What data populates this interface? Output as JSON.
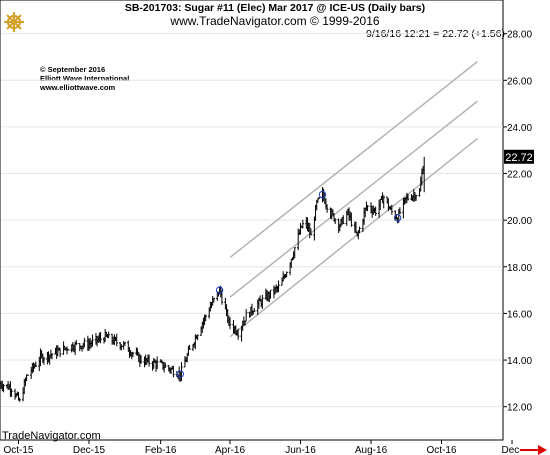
{
  "header": {
    "title": "SB-201703:  Sugar #11 (Elec) Mar 2017 @ ICE-US  (Daily bars)",
    "subtitle": "www.TradeNavigator.com © 1999-2016",
    "last_quote": "9/16/16 12:21 = 22.72 (+1.56)"
  },
  "copyright_lines": [
    "© September 2016",
    "Elliott Wave International",
    "www.elliottwave.com"
  ],
  "brand_label": "TradeNavigator.com",
  "last_price_tag": "22.72",
  "colors": {
    "bars": "#000000",
    "channel_lines": "#b4b4b4",
    "grid": "#e6e6e6",
    "marker": "#1f3fbf",
    "price_tag_bg": "#000000",
    "price_tag_text": "#ffffff",
    "axis_arrow": "#e00000",
    "logo": "#d4a22a"
  },
  "icons": [
    "ship-helm-logo-icon",
    "axis-arrow-icon"
  ],
  "chart_data": {
    "type": "ohlc-bar",
    "xlabel": "",
    "ylabel": "",
    "ylim": [
      11,
      28.5
    ],
    "y_ticks": [
      "12.00",
      "14.00",
      "16.00",
      "18.00",
      "20.00",
      "22.00",
      "24.00",
      "26.00",
      "28.00"
    ],
    "x_ticks": [
      "Oct-15",
      "Dec-15",
      "Feb-16",
      "Apr-16",
      "Jun-16",
      "Aug-16",
      "Oct-16",
      "Dec-"
    ],
    "x_tick_dates": [
      "2015-10-01",
      "2015-12-01",
      "2016-02-01",
      "2016-04-01",
      "2016-06-01",
      "2016-08-01",
      "2016-10-01",
      "2016-12-01"
    ],
    "x_range": [
      "2015-09-15",
      "2016-12-20"
    ],
    "grid": true,
    "price_series": [
      {
        "date": "2015-09-15",
        "close": 13.0
      },
      {
        "date": "2015-09-25",
        "close": 12.8
      },
      {
        "date": "2015-10-02",
        "close": 12.2
      },
      {
        "date": "2015-10-08",
        "close": 13.3
      },
      {
        "date": "2015-10-20",
        "close": 14.1
      },
      {
        "date": "2015-11-01",
        "close": 14.3
      },
      {
        "date": "2015-11-15",
        "close": 14.6
      },
      {
        "date": "2015-12-01",
        "close": 14.7
      },
      {
        "date": "2015-12-15",
        "close": 15.0
      },
      {
        "date": "2016-01-01",
        "close": 14.6
      },
      {
        "date": "2016-01-15",
        "close": 14.0
      },
      {
        "date": "2016-02-01",
        "close": 13.8
      },
      {
        "date": "2016-02-10",
        "close": 13.6
      },
      {
        "date": "2016-02-18",
        "close": 13.4
      },
      {
        "date": "2016-02-25",
        "close": 14.3
      },
      {
        "date": "2016-03-05",
        "close": 15.3
      },
      {
        "date": "2016-03-15",
        "close": 16.3
      },
      {
        "date": "2016-03-23",
        "close": 17.0
      },
      {
        "date": "2016-03-31",
        "close": 15.6
      },
      {
        "date": "2016-04-08",
        "close": 15.2
      },
      {
        "date": "2016-04-15",
        "close": 15.9
      },
      {
        "date": "2016-04-25",
        "close": 16.4
      },
      {
        "date": "2016-05-05",
        "close": 16.8
      },
      {
        "date": "2016-05-15",
        "close": 17.2
      },
      {
        "date": "2016-05-25",
        "close": 18.5
      },
      {
        "date": "2016-06-01",
        "close": 19.6
      },
      {
        "date": "2016-06-05",
        "close": 20.0
      },
      {
        "date": "2016-06-10",
        "close": 19.3
      },
      {
        "date": "2016-06-15",
        "close": 20.7
      },
      {
        "date": "2016-06-20",
        "close": 21.1
      },
      {
        "date": "2016-06-27",
        "close": 20.3
      },
      {
        "date": "2016-07-05",
        "close": 19.8
      },
      {
        "date": "2016-07-12",
        "close": 20.3
      },
      {
        "date": "2016-07-20",
        "close": 19.3
      },
      {
        "date": "2016-07-28",
        "close": 20.6
      },
      {
        "date": "2016-08-05",
        "close": 20.4
      },
      {
        "date": "2016-08-12",
        "close": 21.0
      },
      {
        "date": "2016-08-18",
        "close": 20.4
      },
      {
        "date": "2016-08-24",
        "close": 20.1
      },
      {
        "date": "2016-08-31",
        "close": 20.9
      },
      {
        "date": "2016-09-07",
        "close": 21.1
      },
      {
        "date": "2016-09-12",
        "close": 21.2
      },
      {
        "date": "2016-09-16",
        "close": 22.72
      }
    ],
    "channel_lines": [
      {
        "start": [
          "2016-04-01",
          18.4
        ],
        "end": [
          "2016-11-01",
          26.8
        ]
      },
      {
        "start": [
          "2016-04-01",
          16.7
        ],
        "end": [
          "2016-11-01",
          25.1
        ]
      },
      {
        "start": [
          "2016-04-01",
          15.0
        ],
        "end": [
          "2016-11-01",
          23.5
        ]
      }
    ],
    "markers": [
      {
        "date": "2016-02-18",
        "value": 13.4
      },
      {
        "date": "2016-03-23",
        "value": 17.0
      },
      {
        "date": "2016-06-20",
        "value": 21.1
      },
      {
        "date": "2016-08-24",
        "value": 20.1
      }
    ],
    "last_price": 22.72
  }
}
